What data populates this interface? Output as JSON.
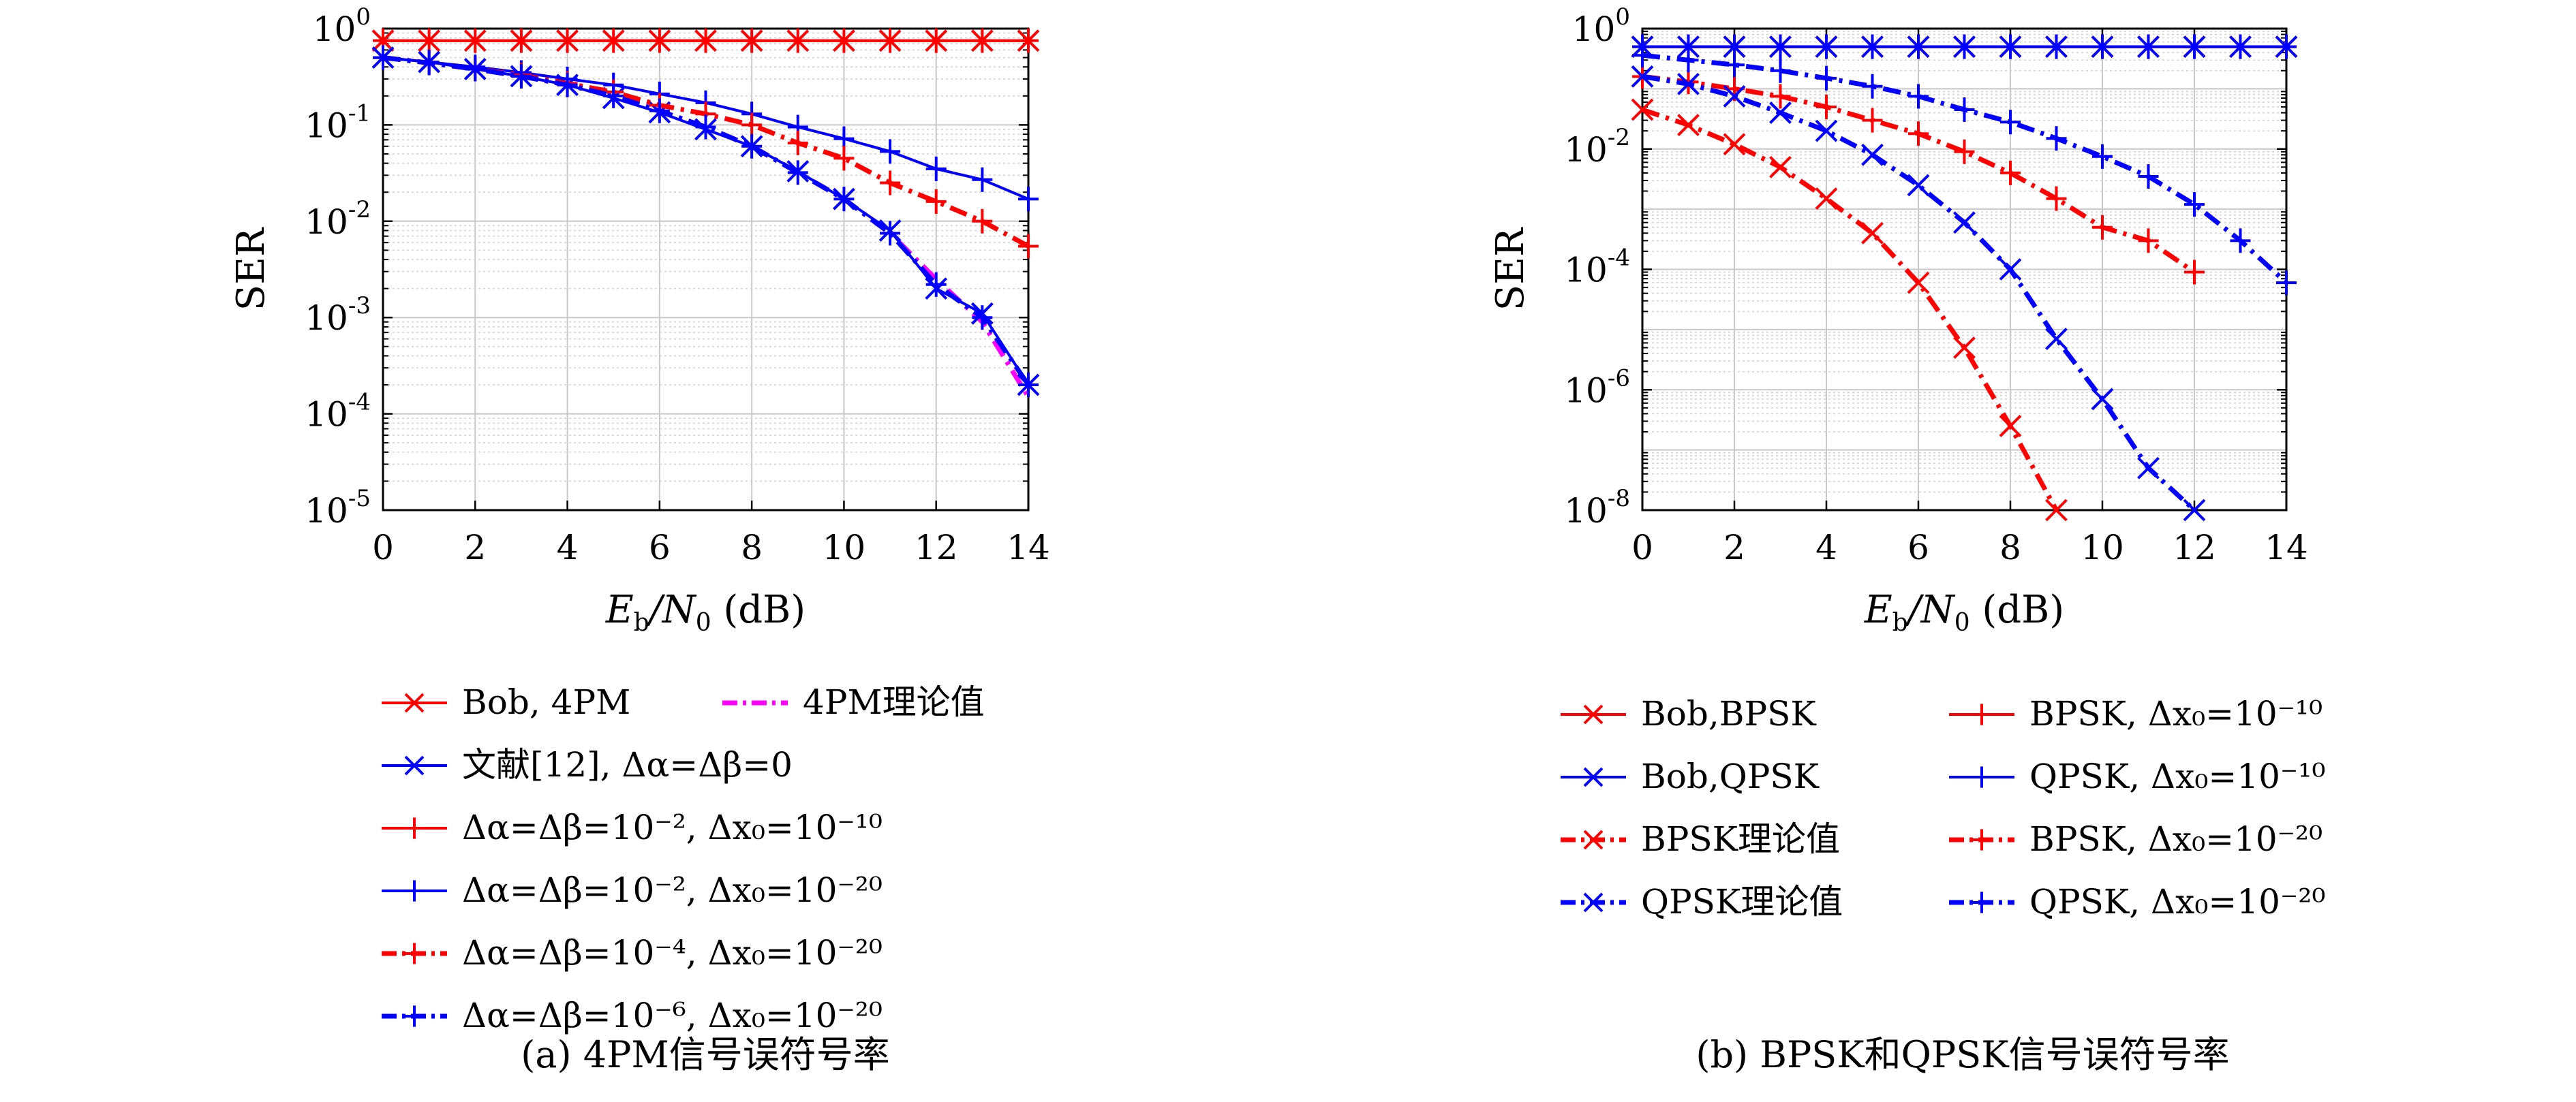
{
  "chart_data": [
    {
      "type": "line",
      "caption": "(a) 4PM信号误符号率",
      "xlabel_var": "E",
      "xlabel_sub": "b",
      "xlabel_mid": "/N",
      "xlabel_sub2": "0",
      "xlabel_unit": " (dB)",
      "ylabel": "SER",
      "xlim": [
        0,
        14
      ],
      "ylim": [
        1e-05,
        1
      ],
      "yscale": "log",
      "grid": true,
      "x_ticks": [
        0,
        2,
        4,
        6,
        8,
        10,
        12,
        14
      ],
      "y_ticks": [
        {
          "value": 1,
          "base": "10",
          "exp": "0"
        },
        {
          "value": 0.1,
          "base": "10",
          "exp": "-1"
        },
        {
          "value": 0.01,
          "base": "10",
          "exp": "-2"
        },
        {
          "value": 0.001,
          "base": "10",
          "exp": "-3"
        },
        {
          "value": 0.0001,
          "base": "10",
          "exp": "-4"
        },
        {
          "value": 1e-05,
          "base": "10",
          "exp": "-5"
        }
      ],
      "legend_columns": 2,
      "series": [
        {
          "name": "Bob, 4PM",
          "color": "#ff0000",
          "dash": "solid",
          "marker": "x",
          "x": [
            0,
            1,
            2,
            3,
            4,
            5,
            6,
            7,
            8,
            9,
            10,
            11,
            12,
            13,
            14
          ],
          "y": [
            0.75,
            0.75,
            0.75,
            0.75,
            0.75,
            0.75,
            0.75,
            0.75,
            0.75,
            0.75,
            0.75,
            0.75,
            0.75,
            0.75,
            0.75
          ]
        },
        {
          "name": "4PM理论值",
          "color": "#ff00ff",
          "dash": "dashdot",
          "marker": "none",
          "x": [
            0,
            1,
            2,
            3,
            4,
            5,
            6,
            7,
            8,
            9,
            10,
            11,
            12,
            13,
            14
          ],
          "y": [
            0.5,
            0.44,
            0.38,
            0.32,
            0.26,
            0.2,
            0.14,
            0.095,
            0.06,
            0.032,
            0.017,
            0.0075,
            0.0025,
            0.0009,
            0.00015
          ]
        },
        {
          "name": "文献[12], Δα=Δβ=0",
          "color": "#0000ff",
          "dash": "solid",
          "marker": "x",
          "x": [
            0,
            1,
            2,
            3,
            4,
            5,
            6,
            7,
            8,
            9,
            10,
            11,
            12,
            13,
            14
          ],
          "y": [
            0.5,
            0.45,
            0.38,
            0.32,
            0.26,
            0.19,
            0.135,
            0.09,
            0.06,
            0.033,
            0.017,
            0.008,
            0.002,
            0.0011,
            0.0002
          ]
        },
        {
          "name": "Δα=Δβ=10⁻², Δx₀=10⁻¹⁰",
          "color": "#ff0000",
          "dash": "solid",
          "marker": "+",
          "x": [
            0,
            1,
            2,
            3,
            4,
            5,
            6,
            7,
            8,
            9,
            10,
            11,
            12,
            13,
            14
          ],
          "y": [
            0.75,
            0.75,
            0.75,
            0.75,
            0.75,
            0.75,
            0.75,
            0.75,
            0.75,
            0.75,
            0.75,
            0.75,
            0.75,
            0.75,
            0.75
          ]
        },
        {
          "name": "Δα=Δβ=10⁻², Δx₀=10⁻²⁰",
          "color": "#0000ff",
          "dash": "solid",
          "marker": "+",
          "x": [
            0,
            1,
            2,
            3,
            4,
            5,
            6,
            7,
            8,
            9,
            10,
            11,
            12,
            13,
            14
          ],
          "y": [
            0.5,
            0.45,
            0.4,
            0.35,
            0.3,
            0.26,
            0.21,
            0.17,
            0.13,
            0.095,
            0.072,
            0.053,
            0.035,
            0.027,
            0.017
          ]
        },
        {
          "name": "Δα=Δβ=10⁻⁴, Δx₀=10⁻²⁰",
          "color": "#ff0000",
          "dash": "dashdot",
          "marker": "+",
          "x": [
            0,
            1,
            2,
            3,
            4,
            5,
            6,
            7,
            8,
            9,
            10,
            11,
            12,
            13,
            14
          ],
          "y": [
            0.5,
            0.44,
            0.38,
            0.33,
            0.27,
            0.22,
            0.16,
            0.13,
            0.1,
            0.065,
            0.045,
            0.025,
            0.016,
            0.01,
            0.0055
          ]
        },
        {
          "name": "Δα=Δβ=10⁻⁶, Δx₀=10⁻²⁰",
          "color": "#0000ff",
          "dash": "dashdot",
          "marker": "+",
          "x": [
            0,
            1,
            2,
            3,
            4,
            5,
            6,
            7,
            8,
            9,
            10,
            11,
            12,
            13,
            14
          ],
          "y": [
            0.5,
            0.44,
            0.38,
            0.32,
            0.26,
            0.2,
            0.14,
            0.095,
            0.06,
            0.032,
            0.017,
            0.0075,
            0.0022,
            0.001,
            0.0002
          ]
        }
      ]
    },
    {
      "type": "line",
      "caption": "(b) BPSK和QPSK信号误符号率",
      "xlabel_var": "E",
      "xlabel_sub": "b",
      "xlabel_mid": "/N",
      "xlabel_sub2": "0",
      "xlabel_unit": " (dB)",
      "ylabel": "SER",
      "xlim": [
        0,
        14
      ],
      "ylim": [
        1e-08,
        1
      ],
      "yscale": "log",
      "grid": true,
      "x_ticks": [
        0,
        2,
        4,
        6,
        8,
        10,
        12,
        14
      ],
      "y_ticks": [
        {
          "value": 1,
          "base": "10",
          "exp": "0"
        },
        {
          "value": 0.01,
          "base": "10",
          "exp": "-2"
        },
        {
          "value": 0.0001,
          "base": "10",
          "exp": "-4"
        },
        {
          "value": 1e-06,
          "base": "10",
          "exp": "-6"
        },
        {
          "value": 1e-08,
          "base": "10",
          "exp": "-8"
        }
      ],
      "legend_columns": 2,
      "series": [
        {
          "name": "Bob,BPSK",
          "color": "#ff0000",
          "dash": "solid",
          "marker": "x",
          "x": [
            0,
            1,
            2,
            3,
            4,
            5,
            6,
            7,
            8,
            9,
            10,
            11,
            12,
            13,
            14
          ],
          "y": [
            0.5,
            0.5,
            0.5,
            0.5,
            0.5,
            0.5,
            0.5,
            0.5,
            0.5,
            0.5,
            0.5,
            0.5,
            0.5,
            0.5,
            0.5
          ]
        },
        {
          "name": "BPSK, Δx₀=10⁻¹⁰",
          "color": "#ff0000",
          "dash": "solid",
          "marker": "+",
          "x": [
            0,
            1,
            2,
            3,
            4,
            5,
            6,
            7,
            8,
            9,
            10,
            11,
            12,
            13,
            14
          ],
          "y": [
            0.5,
            0.5,
            0.5,
            0.5,
            0.5,
            0.5,
            0.5,
            0.5,
            0.5,
            0.5,
            0.5,
            0.5,
            0.5,
            0.5,
            0.5
          ]
        },
        {
          "name": "Bob,QPSK",
          "color": "#0000ff",
          "dash": "solid",
          "marker": "x",
          "x": [
            0,
            1,
            2,
            3,
            4,
            5,
            6,
            7,
            8,
            9,
            10,
            11,
            12,
            13,
            14
          ],
          "y": [
            0.5,
            0.5,
            0.5,
            0.5,
            0.5,
            0.5,
            0.5,
            0.5,
            0.5,
            0.5,
            0.5,
            0.5,
            0.5,
            0.5,
            0.5
          ]
        },
        {
          "name": "QPSK, Δx₀=10⁻¹⁰",
          "color": "#0000ff",
          "dash": "solid",
          "marker": "+",
          "x": [
            0,
            1,
            2,
            3,
            4,
            5,
            6,
            7,
            8,
            9,
            10,
            11,
            12,
            13,
            14
          ],
          "y": [
            0.5,
            0.5,
            0.5,
            0.5,
            0.5,
            0.5,
            0.5,
            0.5,
            0.5,
            0.5,
            0.5,
            0.5,
            0.5,
            0.5,
            0.5
          ]
        },
        {
          "name": "BPSK理论值",
          "color": "#ff0000",
          "dash": "dashdot",
          "marker": "x",
          "x": [
            0,
            1,
            2,
            3,
            4,
            5,
            6,
            7,
            8,
            9
          ],
          "y": [
            0.045,
            0.025,
            0.012,
            0.005,
            0.0015,
            0.0004,
            6e-05,
            5e-06,
            2.5e-07,
            1e-08
          ]
        },
        {
          "name": "BPSK, Δx₀=10⁻²⁰",
          "color": "#ff0000",
          "dash": "dashdot",
          "marker": "+",
          "x": [
            0,
            1,
            2,
            3,
            4,
            5,
            6,
            7,
            8,
            9,
            10,
            11,
            12
          ],
          "y": [
            0.16,
            0.13,
            0.1,
            0.075,
            0.05,
            0.03,
            0.018,
            0.009,
            0.004,
            0.0015,
            0.0005,
            0.0003,
            9e-05
          ]
        },
        {
          "name": "QPSK理论值",
          "color": "#0000ff",
          "dash": "dashdot",
          "marker": "x",
          "x": [
            0,
            1,
            2,
            3,
            4,
            5,
            6,
            7,
            8,
            9,
            10,
            11,
            12
          ],
          "y": [
            0.16,
            0.12,
            0.075,
            0.04,
            0.02,
            0.008,
            0.0025,
            0.0006,
            0.0001,
            7e-06,
            7e-07,
            5e-08,
            1e-08
          ]
        },
        {
          "name": "QPSK, Δx₀=10⁻²⁰",
          "color": "#0000ff",
          "dash": "dashdot",
          "marker": "+",
          "x": [
            0,
            1,
            2,
            3,
            4,
            5,
            6,
            7,
            8,
            9,
            10,
            11,
            12,
            13,
            14
          ],
          "y": [
            0.36,
            0.3,
            0.25,
            0.2,
            0.15,
            0.11,
            0.075,
            0.045,
            0.028,
            0.015,
            0.0075,
            0.0035,
            0.0012,
            0.0003,
            6e-05
          ]
        }
      ]
    }
  ]
}
